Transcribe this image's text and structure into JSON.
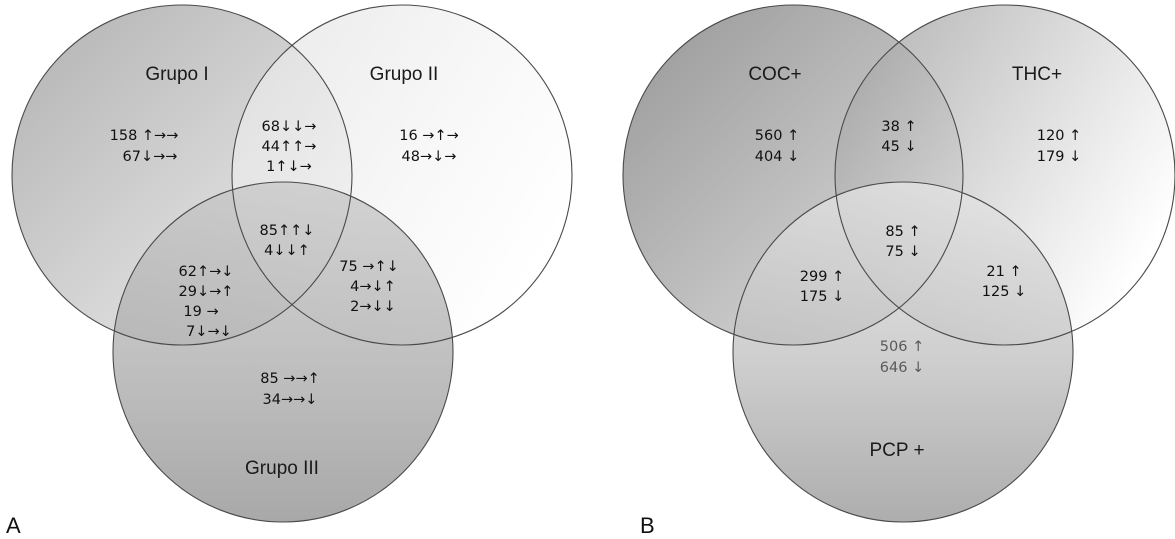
{
  "panel_a": {
    "letter": "A",
    "sets": {
      "grupo_i": "Grupo I",
      "grupo_ii": "Grupo II",
      "grupo_iii": "Grupo III"
    },
    "regions": {
      "i_only": [
        "158 ↑→→",
        "67↓→→"
      ],
      "ii_only": [
        "16 →↑→",
        "48→↓→"
      ],
      "i_ii": [
        "68↓↓→",
        "44↑↑→",
        "1↑↓→"
      ],
      "center": [
        "85↑↑↓",
        "4↓↓↑"
      ],
      "i_iii": [
        "62↑→↓",
        "29↓→↑",
        "19   →",
        "7↓→↓"
      ],
      "ii_iii": [
        "75 →↑↓",
        "4→↓↑",
        "2→↓↓"
      ],
      "iii_only": [
        "85 →→↑",
        "34→→↓"
      ]
    }
  },
  "panel_b": {
    "letter": "B",
    "sets": {
      "coc": "COC+",
      "thc": "THC+",
      "pcp": "PCP +"
    },
    "regions": {
      "coc_only": [
        "560 ↑",
        "404 ↓"
      ],
      "coc_thc": [
        "38 ↑",
        "45 ↓"
      ],
      "thc_only": [
        "120 ↑",
        "179 ↓"
      ],
      "center": [
        "85 ↑",
        "75 ↓"
      ],
      "coc_pcp": [
        "299 ↑",
        "175 ↓"
      ],
      "thc_pcp": [
        "21 ↑",
        "125 ↓"
      ],
      "pcp_only": [
        "506 ↑",
        "646 ↓"
      ]
    }
  }
}
